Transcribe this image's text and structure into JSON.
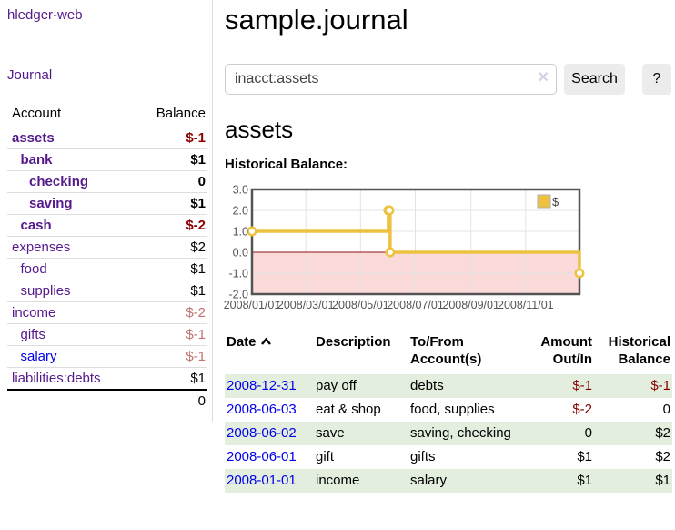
{
  "app": {
    "title": "hledger-web",
    "nav_journal": "Journal"
  },
  "sidebar": {
    "table": {
      "col_account": "Account",
      "col_balance": "Balance",
      "rows": [
        {
          "label": "assets",
          "depth": 1,
          "bold": true,
          "amount": "$-1",
          "tone": "neg-strong",
          "link": "purple"
        },
        {
          "label": "bank",
          "depth": 2,
          "bold": true,
          "amount": "$1",
          "tone": "",
          "link": "purple"
        },
        {
          "label": "checking",
          "depth": 3,
          "bold": true,
          "amount": "0",
          "tone": "",
          "link": "purple"
        },
        {
          "label": "saving",
          "depth": 3,
          "bold": true,
          "amount": "$1",
          "tone": "",
          "link": "purple"
        },
        {
          "label": "cash",
          "depth": 2,
          "bold": true,
          "amount": "$-2",
          "tone": "neg-strong",
          "link": "purple"
        },
        {
          "label": "expenses",
          "depth": 1,
          "bold": false,
          "amount": "$2",
          "tone": "",
          "link": "purple"
        },
        {
          "label": "food",
          "depth": 2,
          "bold": false,
          "amount": "$1",
          "tone": "",
          "link": "purple"
        },
        {
          "label": "supplies",
          "depth": 2,
          "bold": false,
          "amount": "$1",
          "tone": "",
          "link": "purple"
        },
        {
          "label": "income",
          "depth": 1,
          "bold": false,
          "amount": "$-2",
          "tone": "neg-soft",
          "link": "purple"
        },
        {
          "label": "gifts",
          "depth": 2,
          "bold": false,
          "amount": "$-1",
          "tone": "neg-soft",
          "link": "purple"
        },
        {
          "label": "salary",
          "depth": 2,
          "bold": false,
          "amount": "$-1",
          "tone": "neg-soft",
          "link": "blue"
        },
        {
          "label": "liabilities:debts",
          "depth": 1,
          "bold": false,
          "amount": "$1",
          "tone": "",
          "link": "purple"
        }
      ],
      "total": "0"
    }
  },
  "main": {
    "title": "sample.journal",
    "search": {
      "value": "inacct:assets",
      "clear_icon": "×",
      "button": "Search",
      "help_button": "?"
    },
    "account_heading": "assets",
    "chart_label": "Historical Balance:"
  },
  "chart_data": {
    "type": "line",
    "step": true,
    "title": "Historical Balance",
    "series": [
      {
        "name": "$",
        "color": "#edc240",
        "points": [
          [
            "2008-01-01",
            1
          ],
          [
            "2008-06-01",
            2
          ],
          [
            "2008-06-02",
            2
          ],
          [
            "2008-06-03",
            0
          ],
          [
            "2008-12-31",
            -1
          ]
        ]
      }
    ],
    "xlim": [
      "2008-01-01",
      "2008-12-31"
    ],
    "ylim": [
      -2,
      3
    ],
    "x_ticks": [
      "2008-01-01",
      "2008-03-01",
      "2008-05-01",
      "2008-07-01",
      "2008-09-01",
      "2008-11-01"
    ],
    "y_ticks": [
      3.0,
      2.0,
      1.0,
      0.0,
      -1.0,
      -2.0
    ],
    "grid": true,
    "legend_position": "top-right",
    "legend_label": "$",
    "colors": {
      "line": "#edc240",
      "marker_fill": "#ffffff",
      "negative_region": "#fbdada",
      "zero_line": "#8f1010",
      "grid": "#e3e3e3",
      "border": "#545454",
      "tick_text": "#545454"
    }
  },
  "register": {
    "headers": {
      "date": "Date",
      "description": "Description",
      "tofrom1": "To/From",
      "tofrom2": "Account(s)",
      "amount1": "Amount",
      "amount2": "Out/In",
      "balance1": "Historical",
      "balance2": "Balance"
    },
    "rows": [
      {
        "date": "2008-12-31",
        "description": "pay off",
        "accounts": "debts",
        "amount": "$-1",
        "balance": "$-1"
      },
      {
        "date": "2008-06-03",
        "description": "eat & shop",
        "accounts": "food, supplies",
        "amount": "$-2",
        "balance": "0"
      },
      {
        "date": "2008-06-02",
        "description": "save",
        "accounts": "saving, checking",
        "amount": "0",
        "balance": "$2"
      },
      {
        "date": "2008-06-01",
        "description": "gift",
        "accounts": "gifts",
        "amount": "$1",
        "balance": "$2"
      },
      {
        "date": "2008-01-01",
        "description": "income",
        "accounts": "salary",
        "amount": "$1",
        "balance": "$1"
      }
    ]
  },
  "colors": {
    "link_purple": "#551a8b",
    "link_blue": "#0000ee",
    "negative_strong": "#8c0000",
    "negative_soft": "#c0736f",
    "row_green": "#e3eede",
    "chart_yellow": "#edc240"
  }
}
